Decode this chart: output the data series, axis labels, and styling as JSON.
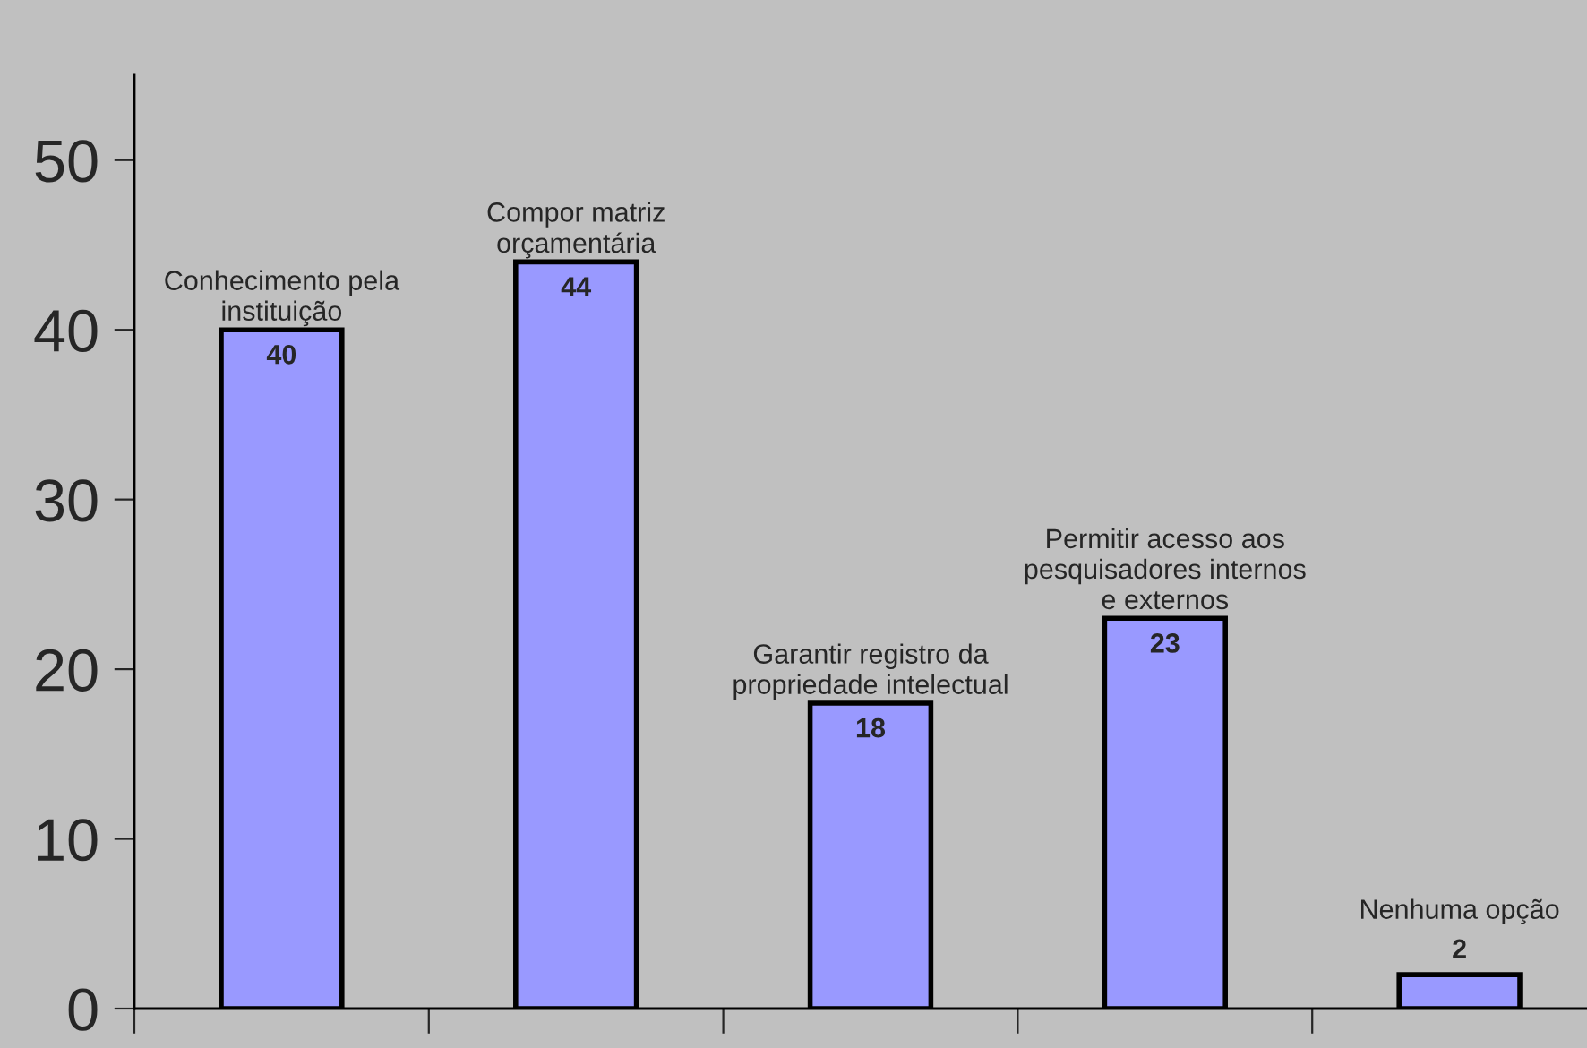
{
  "chart_data": {
    "type": "bar",
    "categories": [
      "Conhecimento pela\ninstituição",
      "Compor matriz\norçamentária",
      "Garantir registro da\npropriedade intelectual",
      "Permitir acesso aos\npesquisadores internos\ne externos",
      "Nenhuma opção"
    ],
    "values": [
      40,
      44,
      18,
      23,
      2
    ],
    "color": "#9999ff",
    "data_labels": true,
    "ylim": [
      0,
      55
    ],
    "yticks": [
      0,
      10,
      20,
      30,
      40,
      50
    ],
    "grid": false,
    "legend": false
  }
}
